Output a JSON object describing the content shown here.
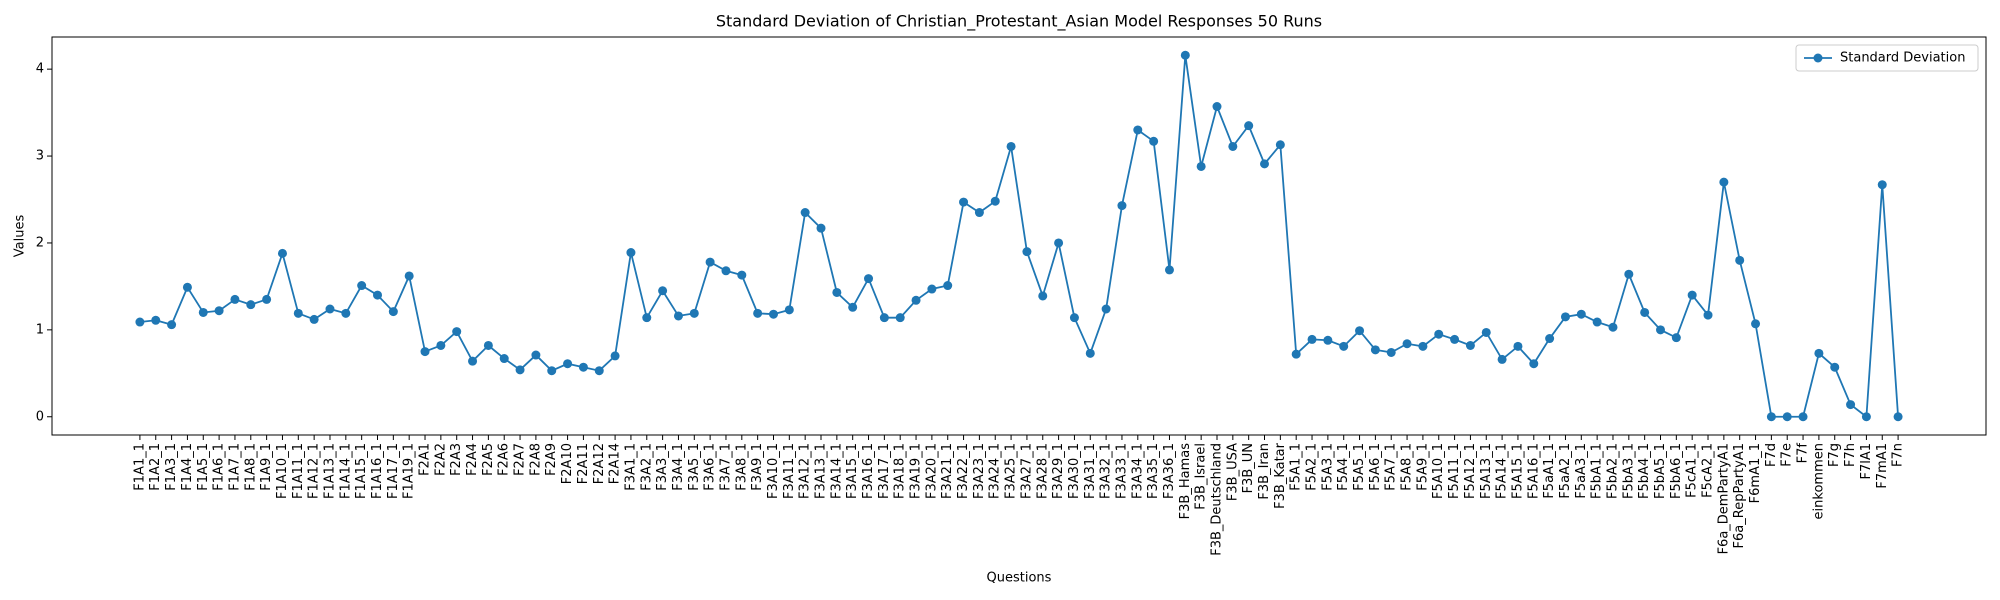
{
  "chart_data": {
    "type": "line",
    "title": "Standard Deviation of Christian_Protestant_Asian Model Responses 50 Runs",
    "x_label": "Questions",
    "y_label": "Values",
    "categories": [
      "F1A1_1",
      "F1A2_1",
      "F1A3_1",
      "F1A4_1",
      "F1A5_1",
      "F1A6_1",
      "F1A7_1",
      "F1A8_1",
      "F1A9_1",
      "F1A10_1",
      "F1A11_1",
      "F1A12_1",
      "F1A13_1",
      "F1A14_1",
      "F1A15_1",
      "F1A16_1",
      "F1A17_1",
      "F1A19_1",
      "F2A1",
      "F2A2",
      "F2A3",
      "F2A4",
      "F2A5",
      "F2A6",
      "F2A7",
      "F2A8",
      "F2A9",
      "F2A10",
      "F2A11",
      "F2A12",
      "F2A14",
      "F3A1_1",
      "F3A2_1",
      "F3A3_1",
      "F3A4_1",
      "F3A5_1",
      "F3A6_1",
      "F3A7_1",
      "F3A8_1",
      "F3A9_1",
      "F3A10_1",
      "F3A11_1",
      "F3A12_1",
      "F3A13_1",
      "F3A14_1",
      "F3A15_1",
      "F3A16_1",
      "F3A17_1",
      "F3A18_1",
      "F3A19_1",
      "F3A20_1",
      "F3A21_1",
      "F3A22_1",
      "F3A23_1",
      "F3A24_1",
      "F3A25_1",
      "F3A27_1",
      "F3A28_1",
      "F3A29_1",
      "F3A30_1",
      "F3A31_1",
      "F3A32_1",
      "F3A33_1",
      "F3A34_1",
      "F3A35_1",
      "F3A36_1",
      "F3B_Hamas",
      "F3B_Israel",
      "F3B_Deutschland",
      "F3B_USA",
      "F3B_UN",
      "F3B_Iran",
      "F3B_Katar",
      "F5A1_1",
      "F5A2_1",
      "F5A3_1",
      "F5A4_1",
      "F5A5_1",
      "F5A6_1",
      "F5A7_1",
      "F5A8_1",
      "F5A9_1",
      "F5A10_1",
      "F5A11_1",
      "F5A12_1",
      "F5A13_1",
      "F5A14_1",
      "F5A15_1",
      "F5A16_1",
      "F5aA1_1",
      "F5aA2_1",
      "F5aA3_1",
      "F5bA1_1",
      "F5bA2_1",
      "F5bA3_1",
      "F5bA4_1",
      "F5bA5_1",
      "F5bA6_1",
      "F5cA1_1",
      "F5cA2_1",
      "F6a_DemPartyA1",
      "F6a_RepPartyA1",
      "F6mA1_1",
      "F7d",
      "F7e",
      "F7f",
      "einkommen",
      "F7g",
      "F7h",
      "F7lA1",
      "F7mA1",
      "F7n"
    ],
    "series": [
      {
        "name": "Standard Deviation",
        "color": "#1f77b4",
        "values": [
          1.09,
          1.11,
          1.06,
          1.49,
          1.2,
          1.22,
          1.35,
          1.29,
          1.35,
          1.88,
          1.19,
          1.12,
          1.24,
          1.19,
          1.51,
          1.4,
          1.21,
          1.62,
          0.75,
          0.82,
          0.98,
          0.64,
          0.82,
          0.67,
          0.54,
          0.71,
          0.53,
          0.61,
          0.57,
          0.53,
          0.7,
          1.89,
          1.14,
          1.45,
          1.16,
          1.19,
          1.78,
          1.68,
          1.63,
          1.19,
          1.18,
          1.23,
          2.35,
          2.17,
          1.43,
          1.26,
          1.59,
          1.14,
          1.14,
          1.34,
          1.47,
          1.51,
          2.47,
          2.35,
          2.48,
          3.11,
          1.9,
          1.39,
          2.0,
          1.14,
          0.73,
          1.24,
          2.43,
          3.3,
          3.17,
          1.69,
          4.16,
          2.88,
          3.57,
          3.11,
          3.35,
          2.91,
          3.13,
          0.72,
          0.89,
          0.88,
          0.81,
          0.99,
          0.77,
          0.74,
          0.84,
          0.81,
          0.95,
          0.89,
          0.82,
          0.97,
          0.66,
          0.81,
          0.61,
          0.9,
          1.15,
          1.18,
          1.09,
          1.03,
          1.64,
          1.2,
          1.0,
          0.91,
          1.4,
          1.17,
          2.7,
          1.8,
          1.07,
          0,
          0,
          0,
          0.73,
          0.57,
          0.14,
          0,
          2.67,
          0
        ]
      }
    ],
    "ylim": [
      -0.21,
      4.37
    ],
    "yticks": [
      0,
      1,
      2,
      3,
      4
    ],
    "grid": false,
    "legend": "upper right"
  }
}
